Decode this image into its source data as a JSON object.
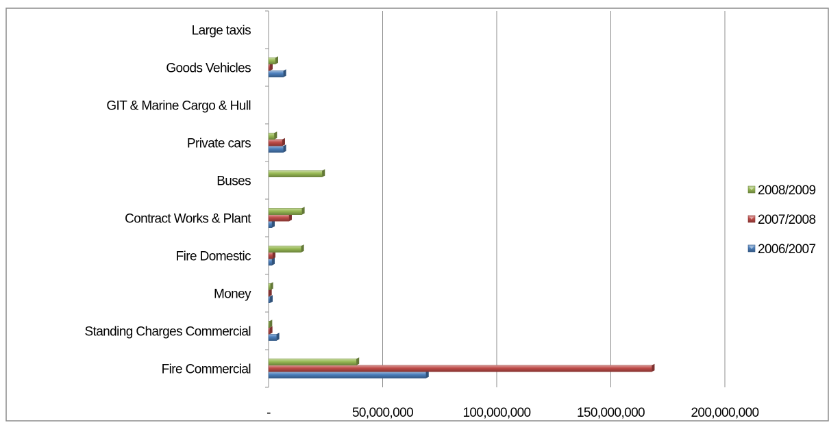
{
  "chart_data": {
    "type": "bar",
    "orientation": "horizontal",
    "categories": [
      "Fire Commercial",
      "Standing Charges Commercial",
      "Money",
      "Fire Domestic",
      "Contract Works & Plant",
      "Buses",
      "Private cars",
      "GIT & Marine Cargo & Hull",
      "Goods Vehicles",
      "Large taxis"
    ],
    "series": [
      {
        "name": "2006/2007",
        "color": "#4a7ebb",
        "values": [
          69000000,
          3500000,
          600000,
          1500000,
          1500000,
          0,
          6500000,
          0,
          6500000,
          0
        ]
      },
      {
        "name": "2007/2008",
        "color": "#be4b48",
        "values": [
          168000000,
          500000,
          200000,
          1800000,
          9000000,
          0,
          6000000,
          0,
          600000,
          0
        ]
      },
      {
        "name": "2008/2009",
        "color": "#98b954",
        "values": [
          38500000,
          400000,
          800000,
          14300000,
          14600000,
          23500000,
          2500000,
          0,
          3000000,
          0
        ]
      }
    ],
    "xlim": [
      0,
      200000000
    ],
    "xticks": [
      0,
      50000000,
      100000000,
      150000000,
      200000000
    ],
    "xtick_labels": [
      "-",
      "50,000,000",
      "100,000,000",
      "150,000,000",
      "200,000,000"
    ],
    "grid": true,
    "legend_position": "right",
    "title": "",
    "xlabel": "",
    "ylabel": ""
  }
}
